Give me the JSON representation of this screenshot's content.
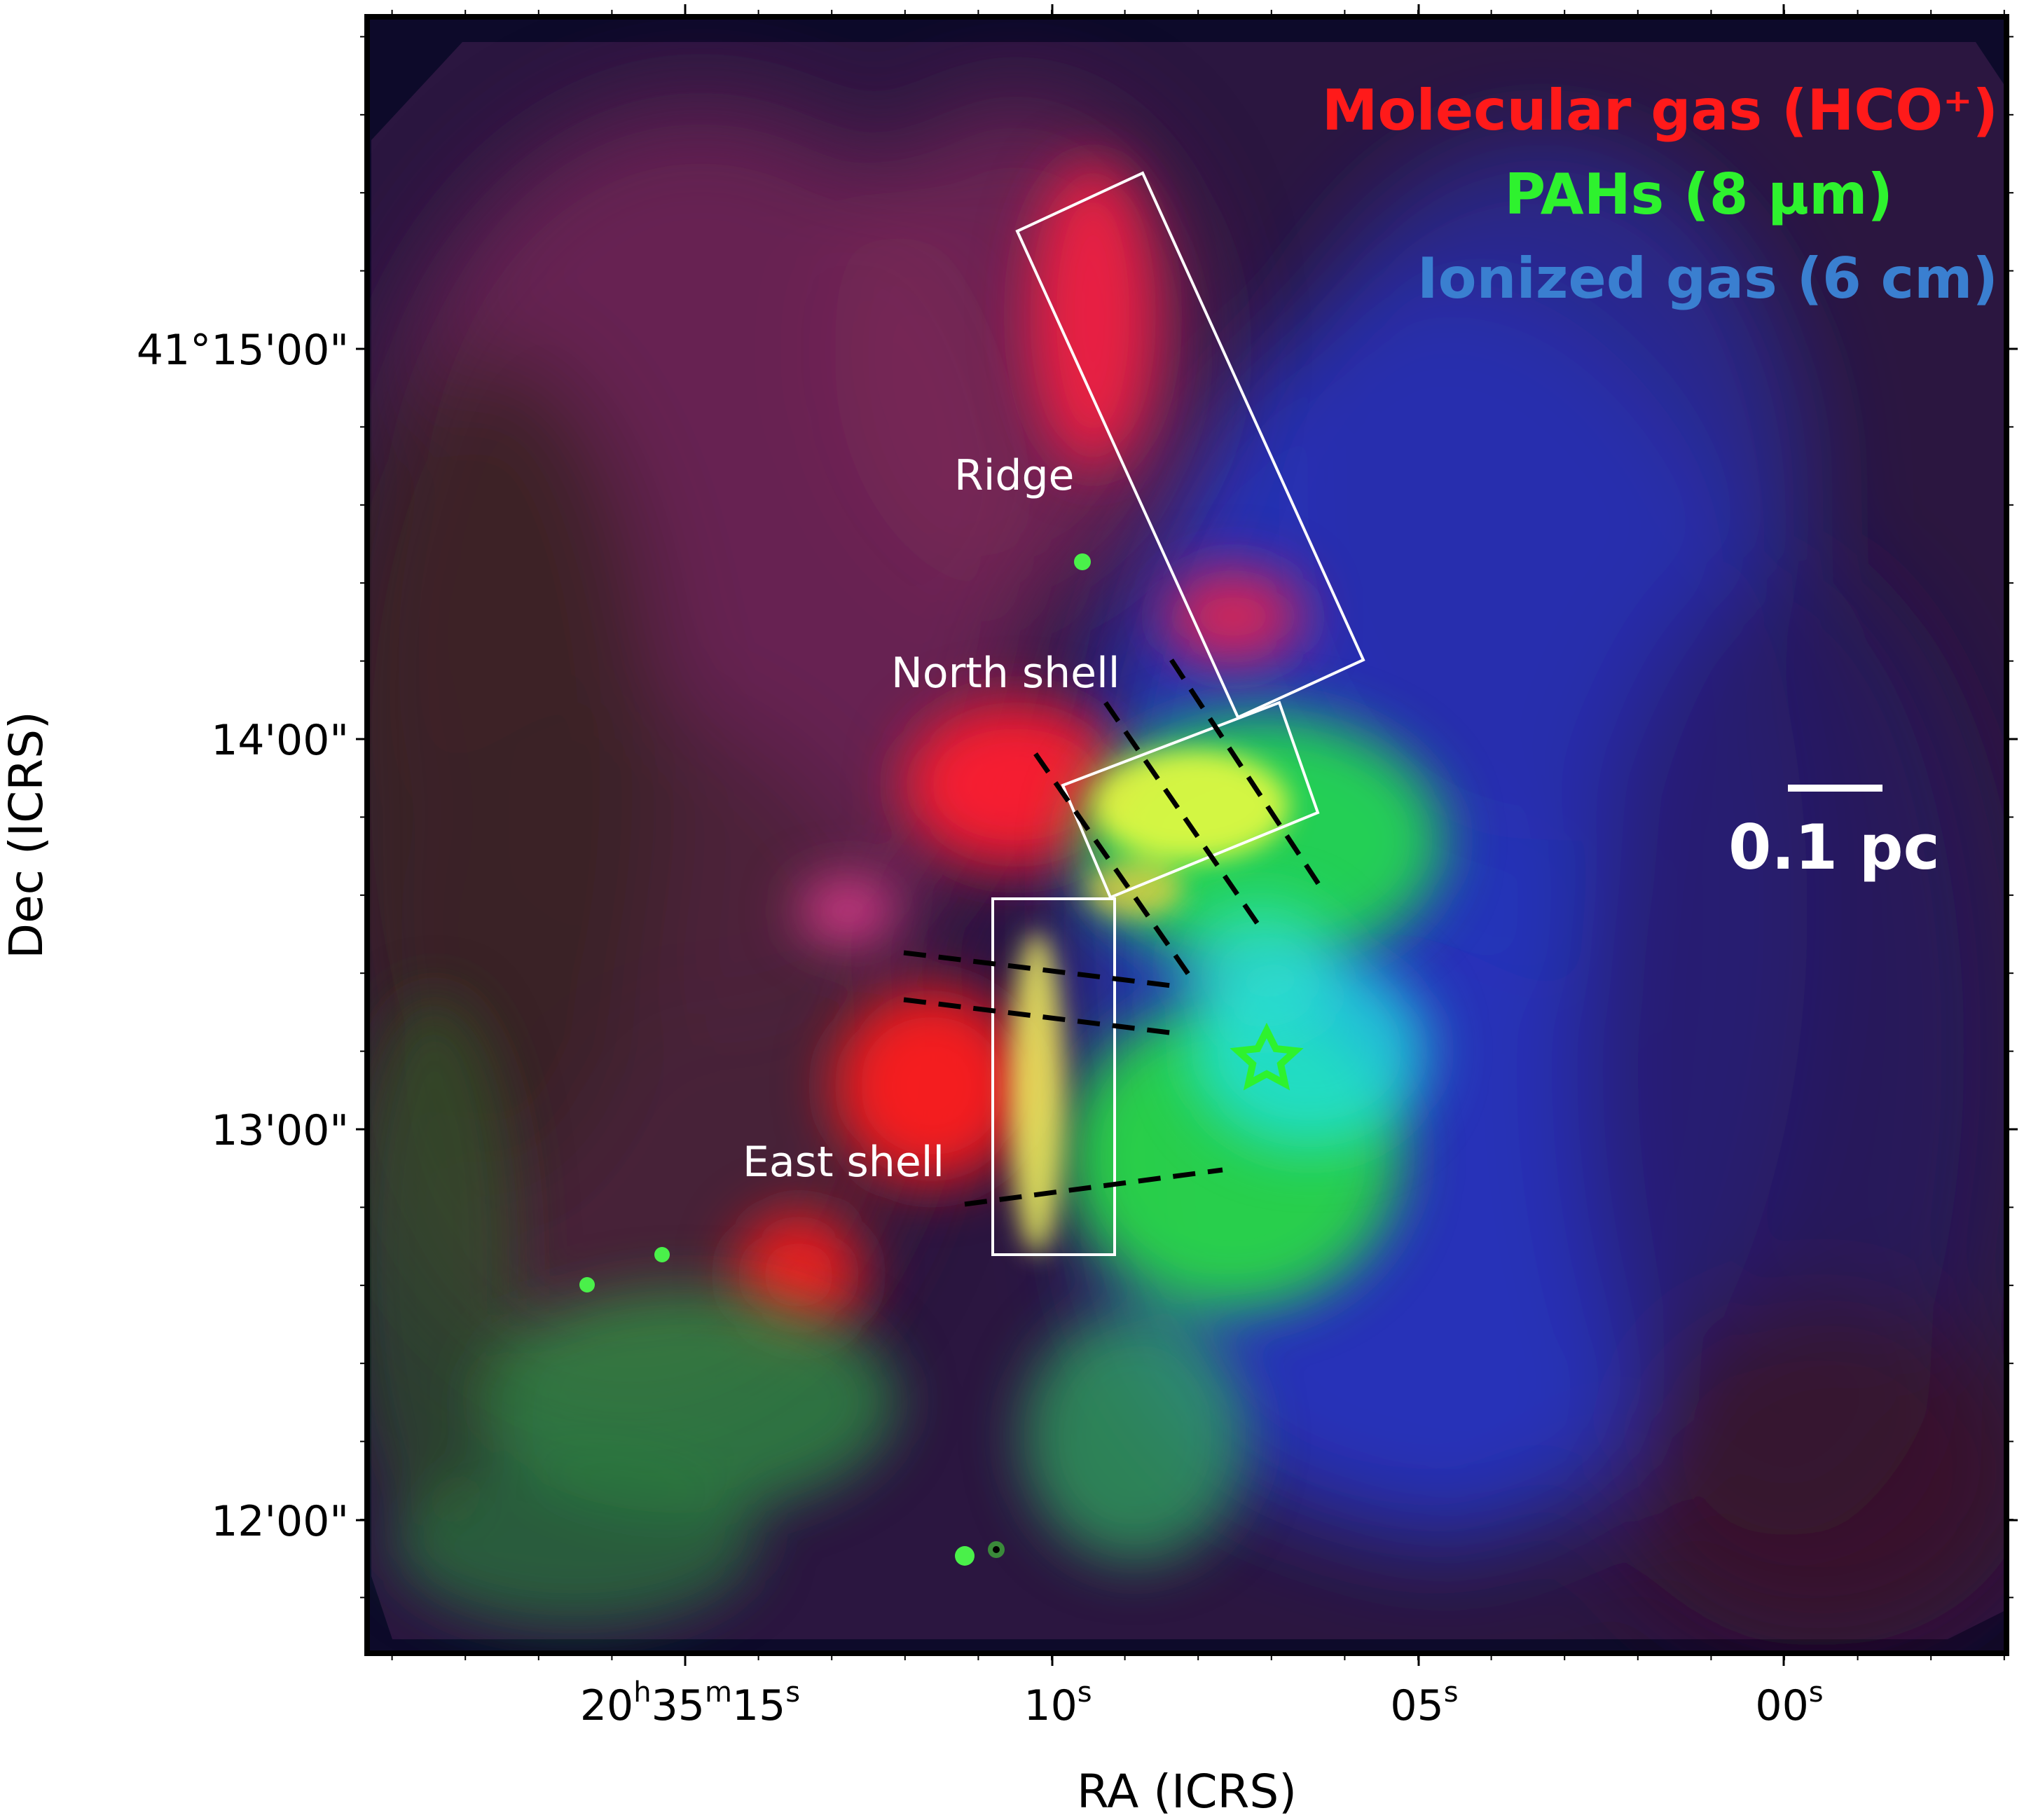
{
  "image": {
    "description_free": true,
    "legend": [
      {
        "label": "Molecular gas (HCO⁺)",
        "color": "#ff1a1a"
      },
      {
        "label": "PAHs (8 μm)",
        "color": "#2ef22e"
      },
      {
        "label": "Ionized gas (6 cm)",
        "color": "#3a7fd0"
      }
    ],
    "regions": [
      {
        "label": "Ridge"
      },
      {
        "label": "North shell"
      },
      {
        "label": "East shell"
      }
    ],
    "scalebar": {
      "label": "0.1 pc"
    },
    "axes": {
      "x_label": "RA (ICRS)",
      "y_label": "Dec (ICRS)",
      "x_ticks": [
        {
          "h": "20",
          "m": "35",
          "s": "15",
          "full": true
        },
        {
          "s": "10"
        },
        {
          "s": "05"
        },
        {
          "s": "00"
        }
      ],
      "y_ticks": [
        "41°15'00\"",
        "14'00\"",
        "13'00\"",
        "12'00\""
      ]
    },
    "colors": {
      "background": "#1a1230",
      "molecular": "#ff1a1a",
      "pah": "#2ef22e",
      "ionized": "#3a7fd0"
    }
  }
}
